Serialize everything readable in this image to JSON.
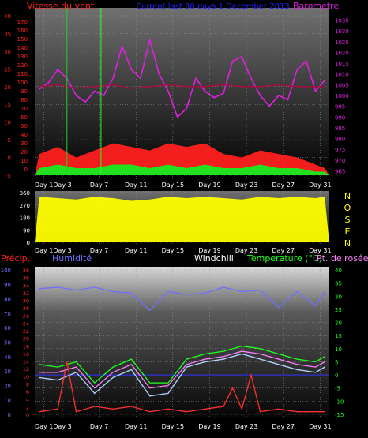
{
  "colors": {
    "wind": "#ff2020",
    "barometer": "#e020e0",
    "title": "#2020ff",
    "direction": "#ffff00",
    "humidity": "#7070ff",
    "temperature": "#20ff20",
    "dewpoint": "#ff80ff",
    "windchill": "#ffffff",
    "precip": "#ff3030",
    "bg_top": "#6e6e6e",
    "bg_bottom": "#000000"
  },
  "chart_data": [
    {
      "type": "line",
      "title": "Current last 30 days 1 December 2013",
      "left_label": "Vitesse du vent",
      "right_label": "Barometre",
      "y_left_ticks": [
        "-5",
        "0",
        "5",
        "10",
        "15",
        "20",
        "25",
        "30",
        "35",
        "40"
      ],
      "y_left_inner_ticks": [
        "0",
        "10",
        "20",
        "30",
        "40",
        "50",
        "60",
        "70",
        "80",
        "90",
        "100",
        "110",
        "120",
        "130",
        "140",
        "150",
        "160",
        "170"
      ],
      "y_right_ticks": [
        "965",
        "970",
        "975",
        "980",
        "985",
        "990",
        "995",
        "1000",
        "1005",
        "1010",
        "1015",
        "1020",
        "1025",
        "1030",
        "1035"
      ],
      "ylim_left": [
        -5,
        40
      ],
      "ylim_right": [
        963,
        1037
      ],
      "x_ticks": [
        "Day 1",
        "Day 3",
        "Day 7",
        "Day 11",
        "Day 15",
        "Day 19",
        "Day 23",
        "Day 27",
        "Day 31"
      ],
      "x_tick_days": [
        1,
        3,
        7,
        11,
        15,
        19,
        23,
        27,
        31
      ],
      "xlim": [
        0,
        32
      ],
      "series": [
        {
          "name": "Barometre",
          "axis": "right",
          "points": [
            [
              0.5,
              1003
            ],
            [
              1.5,
              1006
            ],
            [
              2.5,
              1012
            ],
            [
              3.5,
              1008
            ],
            [
              4.5,
              1000
            ],
            [
              5.5,
              997
            ],
            [
              6.5,
              1002
            ],
            [
              7.5,
              1000
            ],
            [
              8.5,
              1008
            ],
            [
              9.5,
              1023
            ],
            [
              10.5,
              1012
            ],
            [
              11.5,
              1008
            ],
            [
              12.5,
              1026
            ],
            [
              13.5,
              1010
            ],
            [
              14.5,
              1002
            ],
            [
              15.5,
              990
            ],
            [
              16.5,
              994
            ],
            [
              17.5,
              1008
            ],
            [
              18.5,
              1002
            ],
            [
              19.5,
              999
            ],
            [
              20.5,
              1001
            ],
            [
              21.5,
              1016
            ],
            [
              22.5,
              1018
            ],
            [
              23.5,
              1008
            ],
            [
              24.5,
              1000
            ],
            [
              25.5,
              995
            ],
            [
              26.5,
              1000
            ],
            [
              27.5,
              998
            ],
            [
              28.5,
              1012
            ],
            [
              29.5,
              1016
            ],
            [
              30.5,
              1002
            ],
            [
              31.5,
              1007
            ]
          ]
        },
        {
          "name": "wind-average",
          "axis": "left",
          "points": [
            [
              0.5,
              20
            ],
            [
              2.5,
              20.5
            ],
            [
              4.5,
              19.5
            ],
            [
              6.5,
              20
            ],
            [
              8.5,
              20.5
            ],
            [
              10.5,
              19.5
            ],
            [
              12.5,
              20
            ],
            [
              14.5,
              20.5
            ],
            [
              16.5,
              20
            ],
            [
              18.5,
              20
            ],
            [
              20.5,
              20.5
            ],
            [
              22.5,
              20
            ],
            [
              24.5,
              20
            ],
            [
              26.5,
              20.5
            ],
            [
              28.5,
              20
            ],
            [
              31.5,
              20
            ]
          ]
        },
        {
          "name": "wind-gust",
          "axis": "left",
          "points": [
            [
              0.5,
              1
            ],
            [
              2.5,
              3
            ],
            [
              4.5,
              0
            ],
            [
              6.5,
              2
            ],
            [
              8.5,
              4
            ],
            [
              10.5,
              3
            ],
            [
              12.5,
              2
            ],
            [
              14.5,
              4
            ],
            [
              16.5,
              3
            ],
            [
              18.5,
              4
            ],
            [
              20.5,
              1
            ],
            [
              22.5,
              0
            ],
            [
              24.5,
              2
            ],
            [
              26.5,
              1
            ],
            [
              28.5,
              0
            ],
            [
              30.5,
              -2
            ],
            [
              31.5,
              -3
            ]
          ]
        },
        {
          "name": "wind-speed",
          "axis": "left",
          "points": [
            [
              0.5,
              -3
            ],
            [
              2.5,
              -2
            ],
            [
              4.5,
              -3
            ],
            [
              6.5,
              -3
            ],
            [
              8.5,
              -2
            ],
            [
              10.5,
              -2
            ],
            [
              12.5,
              -3
            ],
            [
              14.5,
              -2
            ],
            [
              16.5,
              -3
            ],
            [
              18.5,
              -2
            ],
            [
              20.5,
              -3
            ],
            [
              22.5,
              -3
            ],
            [
              24.5,
              -2
            ],
            [
              26.5,
              -3
            ],
            [
              28.5,
              -3
            ],
            [
              30.5,
              -4
            ],
            [
              31.5,
              -4
            ]
          ]
        }
      ]
    },
    {
      "type": "area",
      "title": "",
      "direction_labels": [
        "N",
        "O",
        "S",
        "E",
        "N"
      ],
      "y_ticks": [
        "0",
        "90",
        "180",
        "270",
        "360"
      ],
      "ylim": [
        0,
        360
      ],
      "x_ticks": [
        "Day 1",
        "Day 3",
        "Day 7",
        "Day 11",
        "Day 15",
        "Day 19",
        "Day 23",
        "Day 27",
        "Day 31"
      ],
      "x_tick_days": [
        1,
        3,
        7,
        11,
        15,
        19,
        23,
        27,
        31
      ],
      "xlim": [
        0,
        32
      ],
      "series": [
        {
          "name": "",
          "points": [
            [
              0.5,
              330
            ],
            [
              2.5,
              320
            ],
            [
              4.5,
              310
            ],
            [
              6.5,
              330
            ],
            [
              8.5,
              320
            ],
            [
              10.5,
              300
            ],
            [
              12.5,
              310
            ],
            [
              14.5,
              330
            ],
            [
              16.5,
              320
            ],
            [
              18.5,
              330
            ],
            [
              20.5,
              320
            ],
            [
              22.5,
              310
            ],
            [
              24.5,
              330
            ],
            [
              26.5,
              320
            ],
            [
              28.5,
              330
            ],
            [
              30.5,
              320
            ],
            [
              31.5,
              330
            ]
          ]
        }
      ]
    },
    {
      "type": "line",
      "left_label_1": "Précip.",
      "left_label_2": "Humidité",
      "legend_windchill": "Windchill",
      "legend_temperature": "Temperature (°C)",
      "legend_dewpoint": "Pt. de rosée",
      "y_humidity_ticks": [
        "0",
        "10",
        "20",
        "30",
        "40",
        "50",
        "60",
        "70",
        "80",
        "90",
        "100"
      ],
      "y_precip_ticks": [
        "0",
        "2",
        "4",
        "6",
        "8",
        "10",
        "12",
        "14",
        "16",
        "18",
        "20",
        "22",
        "24",
        "26",
        "28",
        "30",
        "32",
        "34",
        "36",
        "38"
      ],
      "y_right_ticks": [
        "-15",
        "-10",
        "-5",
        "0",
        "5",
        "10",
        "15",
        "20",
        "25",
        "30",
        "35",
        "40"
      ],
      "ylim_right": [
        -15,
        40
      ],
      "ylim_humidity": [
        0,
        100
      ],
      "x_ticks": [
        "Day 1",
        "Day 3",
        "Day 7",
        "Day 11",
        "Day 15",
        "Day 19",
        "Day 23",
        "Day 27",
        "Day 31"
      ],
      "x_tick_days": [
        1,
        3,
        7,
        11,
        15,
        19,
        23,
        27,
        31
      ],
      "xlim": [
        0,
        32
      ],
      "series": [
        {
          "name": "Humidité",
          "axis": "humidity",
          "points": [
            [
              0.5,
              87
            ],
            [
              2.5,
              88
            ],
            [
              4.5,
              86
            ],
            [
              6.5,
              88
            ],
            [
              8.5,
              85
            ],
            [
              10.5,
              84
            ],
            [
              12.5,
              72
            ],
            [
              14.5,
              85
            ],
            [
              16.5,
              83
            ],
            [
              18.5,
              84
            ],
            [
              20.5,
              88
            ],
            [
              22.5,
              85
            ],
            [
              24.5,
              86
            ],
            [
              26.5,
              74
            ],
            [
              28.5,
              85
            ],
            [
              30.5,
              75
            ],
            [
              31.5,
              85
            ]
          ]
        },
        {
          "name": "Temperature (°C)",
          "axis": "right",
          "points": [
            [
              0.5,
              4
            ],
            [
              2.5,
              3
            ],
            [
              4.5,
              5
            ],
            [
              6.5,
              -3
            ],
            [
              8.5,
              3
            ],
            [
              10.5,
              6
            ],
            [
              12.5,
              -3
            ],
            [
              14.5,
              -3
            ],
            [
              16.5,
              6
            ],
            [
              18.5,
              8
            ],
            [
              20.5,
              9
            ],
            [
              22.5,
              11
            ],
            [
              24.5,
              10
            ],
            [
              26.5,
              8
            ],
            [
              28.5,
              6
            ],
            [
              30.5,
              5
            ],
            [
              31.5,
              7
            ]
          ]
        },
        {
          "name": "Pt. de rosée",
          "axis": "right",
          "points": [
            [
              0.5,
              1
            ],
            [
              2.5,
              1
            ],
            [
              4.5,
              3
            ],
            [
              6.5,
              -5
            ],
            [
              8.5,
              1
            ],
            [
              10.5,
              4
            ],
            [
              12.5,
              -5
            ],
            [
              14.5,
              -4
            ],
            [
              16.5,
              4
            ],
            [
              18.5,
              6
            ],
            [
              20.5,
              7
            ],
            [
              22.5,
              9
            ],
            [
              24.5,
              8
            ],
            [
              26.5,
              6
            ],
            [
              28.5,
              4
            ],
            [
              30.5,
              3
            ],
            [
              31.5,
              5
            ]
          ]
        },
        {
          "name": "Windchill",
          "axis": "right",
          "points": [
            [
              0.5,
              -1
            ],
            [
              2.5,
              -2
            ],
            [
              4.5,
              1
            ],
            [
              6.5,
              -7
            ],
            [
              8.5,
              -1
            ],
            [
              10.5,
              2
            ],
            [
              12.5,
              -8
            ],
            [
              14.5,
              -7
            ],
            [
              16.5,
              3
            ],
            [
              18.5,
              5
            ],
            [
              20.5,
              6
            ],
            [
              22.5,
              8
            ],
            [
              24.5,
              6
            ],
            [
              26.5,
              4
            ],
            [
              28.5,
              2
            ],
            [
              30.5,
              1
            ],
            [
              31.5,
              3
            ]
          ]
        },
        {
          "name": "Précip.",
          "axis": "right",
          "points": [
            [
              0.5,
              -14
            ],
            [
              2.5,
              -13
            ],
            [
              3.5,
              5
            ],
            [
              4.5,
              -14
            ],
            [
              6.5,
              -12
            ],
            [
              8.5,
              -13
            ],
            [
              10.5,
              -12
            ],
            [
              12.5,
              -14
            ],
            [
              14.5,
              -13
            ],
            [
              16.5,
              -14
            ],
            [
              18.5,
              -13
            ],
            [
              20.5,
              -12
            ],
            [
              21.5,
              -5
            ],
            [
              22.5,
              -13
            ],
            [
              23.5,
              0
            ],
            [
              24.5,
              -14
            ],
            [
              26.5,
              -13
            ],
            [
              28.5,
              -14
            ],
            [
              30.5,
              -14
            ],
            [
              31.5,
              -14
            ]
          ]
        }
      ]
    }
  ]
}
